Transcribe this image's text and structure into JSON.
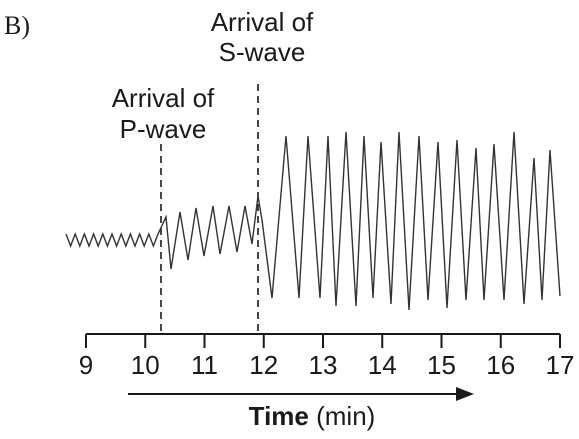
{
  "figure_label": "B)",
  "annotations": {
    "p_wave": [
      "Arrival of",
      "P-wave"
    ],
    "s_wave": [
      "Arrival of",
      "S-wave"
    ]
  },
  "axis": {
    "ticks": [
      "9",
      "10",
      "11",
      "12",
      "13",
      "14",
      "15",
      "16",
      "17"
    ],
    "title_bold": "Time",
    "title_unit": "(min)"
  },
  "events": {
    "p_wave_arrival_min": 10.25,
    "s_wave_arrival_min": 11.9
  },
  "colors": {
    "ink": "#1a1a1a",
    "trace": "#333333"
  }
}
